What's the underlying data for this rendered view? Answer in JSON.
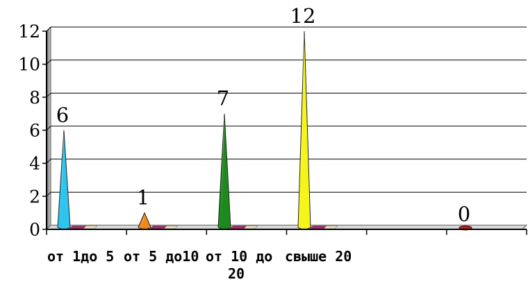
{
  "chart_data": {
    "type": "bar",
    "bar_shape": "cone",
    "categories": [
      "от 1до 5",
      "от 5 до10",
      "от 10 до 20",
      "свыше 20",
      ""
    ],
    "category_lines": [
      [
        "от 1до 5"
      ],
      [
        "от 5 до10"
      ],
      [
        "от 10 до",
        "20"
      ],
      [
        "свыше 20"
      ],
      [
        ""
      ]
    ],
    "values": [
      6,
      1,
      7,
      12,
      0
    ],
    "data_labels": [
      "6",
      "1",
      "7",
      "12",
      "0"
    ],
    "bar_colors": [
      "#2ec4f0",
      "#f08a1c",
      "#1e8a1e",
      "#f5f51a",
      "#cc1a1a"
    ],
    "ylim": [
      0,
      12
    ],
    "yticks": [
      0,
      2,
      4,
      6,
      8,
      10,
      12
    ],
    "ytick_labels": [
      "0",
      "2",
      "4",
      "6",
      "8",
      "10",
      "12"
    ],
    "grid": true,
    "legend": "none",
    "title": "",
    "xlabel": "",
    "ylabel": ""
  }
}
